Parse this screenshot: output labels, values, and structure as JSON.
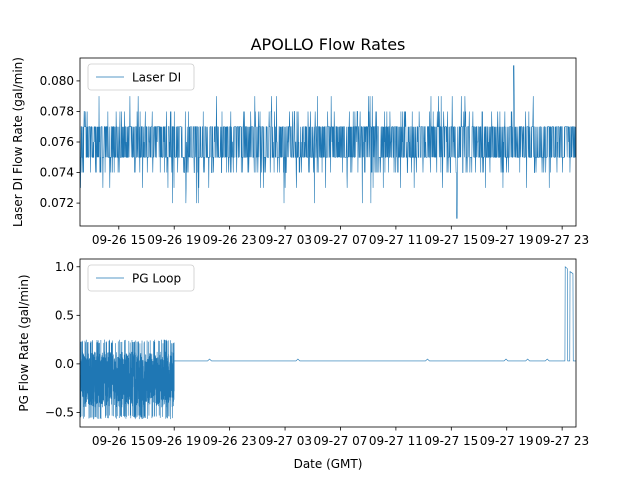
{
  "figure": {
    "title": "APOLLO Flow Rates",
    "xlabel": "Date (GMT)"
  },
  "chart_data": [
    {
      "type": "line",
      "name": "laser-di",
      "ylabel": "Laser DI Flow Rate (gal/min)",
      "ylim": [
        0.0705,
        0.0815
      ],
      "yticks": [
        0.072,
        0.074,
        0.076,
        0.078,
        0.08
      ],
      "ytick_labels": [
        "0.072",
        "0.074",
        "0.076",
        "0.078",
        "0.080"
      ],
      "xlim_hours": [
        12.2,
        48.0
      ],
      "xticks_hours": [
        15,
        19,
        23,
        27,
        31,
        35,
        39,
        43,
        47
      ],
      "xtick_labels": [
        "09-26 15",
        "09-26 19",
        "09-26 23",
        "09-27 03",
        "09-27 07",
        "09-27 11",
        "09-27 15",
        "09-27 19",
        "09-27 23"
      ],
      "legend": {
        "label": "Laser DI",
        "loc": "upper left"
      },
      "color": "#1f77b4",
      "series": {
        "name": "Laser DI",
        "base_level": 0.0755,
        "levels": [
          0.071,
          0.072,
          0.073,
          0.074,
          0.075,
          0.076,
          0.077,
          0.078,
          0.079,
          0.08,
          0.081
        ],
        "dominant_band": [
          0.075,
          0.077
        ],
        "max": {
          "hour": 43.5,
          "value": 0.081
        },
        "min": {
          "hour": 39.4,
          "value": 0.071
        }
      }
    },
    {
      "type": "line",
      "name": "pg-loop",
      "ylabel": "PG Flow Rate (gal/min)",
      "ylim": [
        -0.65,
        1.08
      ],
      "yticks": [
        -0.5,
        0.0,
        0.5,
        1.0
      ],
      "ytick_labels": [
        "−0.5",
        "0.0",
        "0.5",
        "1.0"
      ],
      "xlim_hours": [
        12.2,
        48.0
      ],
      "xticks_hours": [
        15,
        19,
        23,
        27,
        31,
        35,
        39,
        43,
        47
      ],
      "xtick_labels": [
        "09-26 15",
        "09-26 19",
        "09-26 23",
        "09-27 03",
        "09-27 07",
        "09-27 11",
        "09-27 15",
        "09-27 19",
        "09-27 23"
      ],
      "legend": {
        "label": "PG Loop",
        "loc": "upper left"
      },
      "color": "#1f77b4",
      "series": {
        "name": "PG Loop",
        "noisy_segment": {
          "start_hour": 12.2,
          "end_hour": 19.0,
          "min": -0.57,
          "max": 0.25
        },
        "flat_segment": {
          "start_hour": 19.0,
          "end_hour": 47.2,
          "value": 0.03
        },
        "spikes": [
          {
            "start_hour": 47.2,
            "end_hour": 47.4,
            "value": 1.0
          },
          {
            "start_hour": 47.55,
            "end_hour": 47.8,
            "value": 0.95
          }
        ]
      }
    }
  ]
}
